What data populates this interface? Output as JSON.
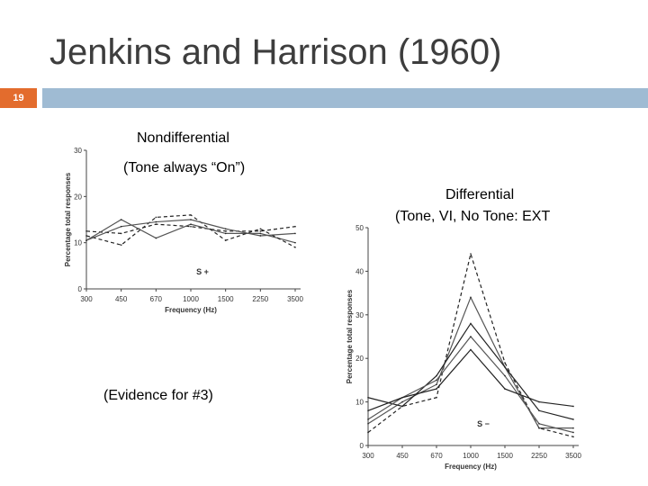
{
  "slide": {
    "title": "Jenkins and Harrison (1960)",
    "number": "19",
    "caption_left_1": "Nondifferential",
    "caption_left_2": "(Tone always “On”)",
    "caption_right_1": "Differential",
    "caption_right_2": "(Tone, VI, No Tone: EXT",
    "caption_bottom": "(Evidence for #3)",
    "colors": {
      "orange": "#e36c2d",
      "blue": "#9fbbd3",
      "title": "#3d3d3d"
    }
  },
  "chart_data": [
    {
      "type": "line",
      "ylabel": "Percentage total responses",
      "xlabel": "Frequency (Hz)",
      "annotation": "S +",
      "categories": [
        "300",
        "450",
        "670",
        "1000",
        "1500",
        "2250",
        "3500"
      ],
      "yticks": [
        0,
        10,
        20,
        30
      ],
      "ylim": [
        0,
        30
      ],
      "series": [
        {
          "values": [
            12.5,
            12,
            14,
            13.5,
            12.5,
            12.5,
            13.5
          ]
        },
        {
          "values": [
            10.5,
            15,
            11,
            14,
            12,
            12,
            10
          ]
        },
        {
          "values": [
            11.5,
            9.5,
            15.5,
            16,
            10.5,
            13,
            9
          ]
        },
        {
          "values": [
            10.5,
            13.5,
            14.5,
            15,
            13,
            11.5,
            12
          ]
        }
      ]
    },
    {
      "type": "line",
      "ylabel": "Percentage total responses",
      "xlabel": "Frequency (Hz)",
      "annotation": "S −",
      "categories": [
        "300",
        "450",
        "670",
        "1000",
        "1500",
        "2250",
        "3500"
      ],
      "yticks": [
        0,
        10,
        20,
        30,
        40,
        50
      ],
      "ylim": [
        0,
        50
      ],
      "series": [
        {
          "dashed": true,
          "values": [
            3,
            9,
            11,
            44,
            19,
            4,
            2
          ]
        },
        {
          "dashed": false,
          "values": [
            5,
            10,
            14,
            34,
            18,
            4,
            4
          ]
        },
        {
          "dashed": false,
          "values": [
            11,
            9,
            16,
            28,
            18,
            8,
            6
          ]
        },
        {
          "dashed": false,
          "values": [
            6,
            11,
            15,
            25,
            16,
            5,
            3
          ]
        },
        {
          "dashed": false,
          "values": [
            8,
            11,
            13,
            22,
            13,
            10,
            9
          ]
        }
      ]
    }
  ]
}
